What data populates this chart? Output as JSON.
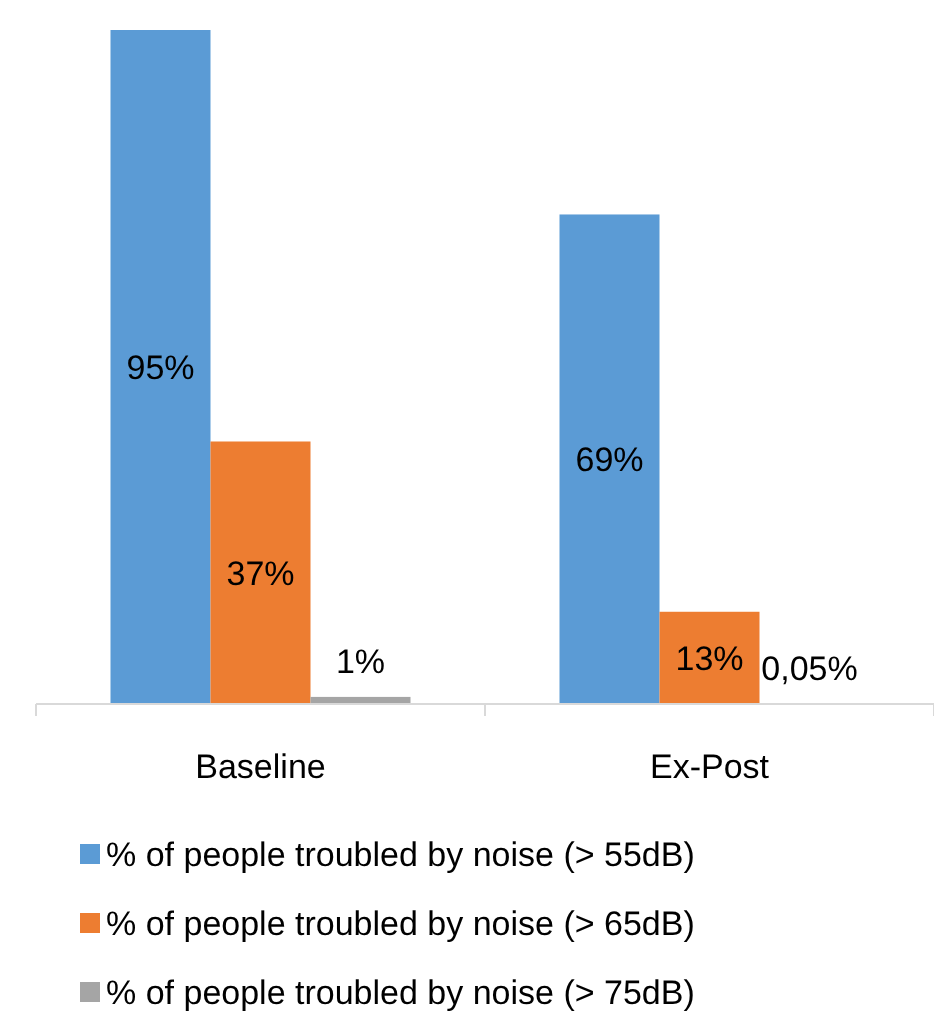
{
  "chart_data": {
    "type": "bar",
    "categories": [
      "Baseline",
      "Ex-Post"
    ],
    "series": [
      {
        "name": "% of people troubled by noise (> 55dB)",
        "color": "#5b9bd5",
        "values": [
          95,
          69
        ],
        "value_labels": [
          "95%",
          "69%"
        ]
      },
      {
        "name": "% of people troubled by noise (> 65dB)",
        "color": "#ed7d31",
        "values": [
          37,
          13
        ],
        "value_labels": [
          "37%",
          "13%"
        ]
      },
      {
        "name": "% of people troubled by noise (> 75dB)",
        "color": "#a5a5a5",
        "values": [
          1,
          0.05
        ],
        "value_labels": [
          "1%",
          "0,05%"
        ]
      }
    ],
    "legend": "bottom"
  }
}
